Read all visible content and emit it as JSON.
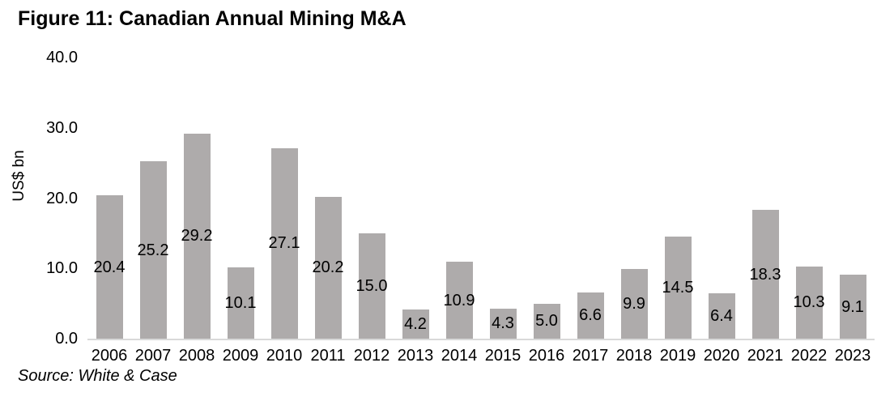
{
  "figure": {
    "title": "Figure 11: Canadian Annual Mining M&A",
    "source": "Source: White & Case"
  },
  "chart_data": {
    "type": "bar",
    "title": "Figure 11: Canadian Annual Mining M&A",
    "categories": [
      "2006",
      "2007",
      "2008",
      "2009",
      "2010",
      "2011",
      "2012",
      "2013",
      "2014",
      "2015",
      "2016",
      "2017",
      "2018",
      "2019",
      "2020",
      "2021",
      "2022",
      "2023"
    ],
    "values": [
      20.4,
      25.2,
      29.2,
      10.1,
      27.1,
      20.2,
      15.0,
      4.2,
      10.9,
      4.3,
      5.0,
      6.6,
      9.9,
      14.5,
      6.4,
      18.3,
      10.3,
      9.1
    ],
    "value_label_decimals": 1,
    "value_label_position": "centered-inside-bar",
    "xlabel": "",
    "ylabel": "US$ bn",
    "ylim": [
      0,
      40
    ],
    "yticks": [
      0,
      10,
      20,
      30,
      40
    ],
    "ytick_labels": [
      "0.0",
      "10.0",
      "20.0",
      "30.0",
      "40.0"
    ],
    "grid": false,
    "legend": null,
    "bar_color": "#AEABAB",
    "axis_line_color": "#D9D9D9",
    "text_color": "#000000",
    "source": "Source: White & Case"
  }
}
